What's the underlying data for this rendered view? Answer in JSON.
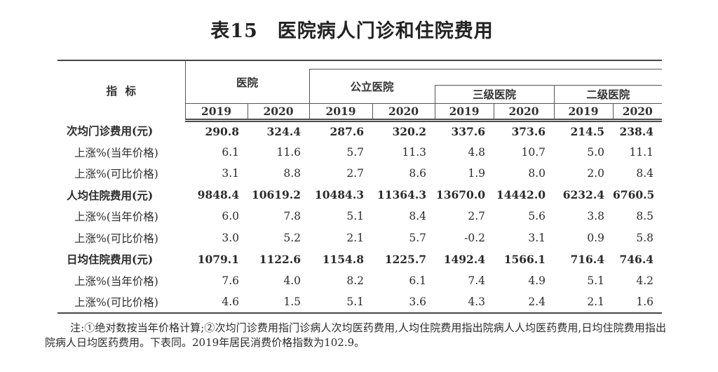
{
  "title": "表15　医院病人门诊和住院费用",
  "table": {
    "indicator_header": "指 标",
    "groups": [
      {
        "label": "医院"
      },
      {
        "label": "公立医院"
      },
      {
        "label": "三级医院"
      },
      {
        "label": "二级医院"
      }
    ],
    "years": [
      "2019",
      "2020",
      "2019",
      "2020",
      "2019",
      "2020",
      "2019",
      "2020"
    ],
    "rows": [
      {
        "label": "次均门诊费用(元)",
        "bold": true,
        "indent": false,
        "values": [
          "290.8",
          "324.4",
          "287.6",
          "320.2",
          "337.6",
          "373.6",
          "214.5",
          "238.4"
        ]
      },
      {
        "label": "上涨%(当年价格)",
        "bold": false,
        "indent": true,
        "values": [
          "6.1",
          "11.6",
          "5.7",
          "11.3",
          "4.8",
          "10.7",
          "5.0",
          "11.1"
        ]
      },
      {
        "label": "上涨%(可比价格)",
        "bold": false,
        "indent": true,
        "values": [
          "3.1",
          "8.8",
          "2.7",
          "8.6",
          "1.9",
          "8.0",
          "2.0",
          "8.4"
        ]
      },
      {
        "label": "人均住院费用(元)",
        "bold": true,
        "indent": false,
        "values": [
          "9848.4",
          "10619.2",
          "10484.3",
          "11364.3",
          "13670.0",
          "14442.0",
          "6232.4",
          "6760.5"
        ]
      },
      {
        "label": "上涨%(当年价格)",
        "bold": false,
        "indent": true,
        "values": [
          "6.0",
          "7.8",
          "5.1",
          "8.4",
          "2.7",
          "5.6",
          "3.8",
          "8.5"
        ]
      },
      {
        "label": "上涨%(可比价格)",
        "bold": false,
        "indent": true,
        "values": [
          "3.0",
          "5.2",
          "2.1",
          "5.7",
          "-0.2",
          "3.1",
          "0.9",
          "5.8"
        ]
      },
      {
        "label": "日均住院费用(元)",
        "bold": true,
        "indent": false,
        "values": [
          "1079.1",
          "1122.6",
          "1154.8",
          "1225.7",
          "1492.4",
          "1566.1",
          "716.4",
          "746.4"
        ]
      },
      {
        "label": "上涨%(当年价格)",
        "bold": false,
        "indent": true,
        "values": [
          "7.6",
          "4.0",
          "8.2",
          "6.1",
          "7.4",
          "4.9",
          "5.1",
          "4.2"
        ]
      },
      {
        "label": "上涨%(可比价格)",
        "bold": false,
        "indent": true,
        "values": [
          "4.6",
          "1.5",
          "5.1",
          "3.6",
          "4.3",
          "2.4",
          "2.1",
          "1.6"
        ]
      }
    ]
  },
  "footnote": "注:①绝对数按当年价格计算;②次均门诊费用指门诊病人次均医药费用,人均住院费用指出院病人人均医药费用,日均住院费用指出院病人日均医药费用。下表同。2019年居民消费价格指数为102.9。",
  "colors": {
    "text": "#2b2b2b",
    "border": "#555555",
    "rule": "#464646",
    "background": "#ffffff"
  }
}
